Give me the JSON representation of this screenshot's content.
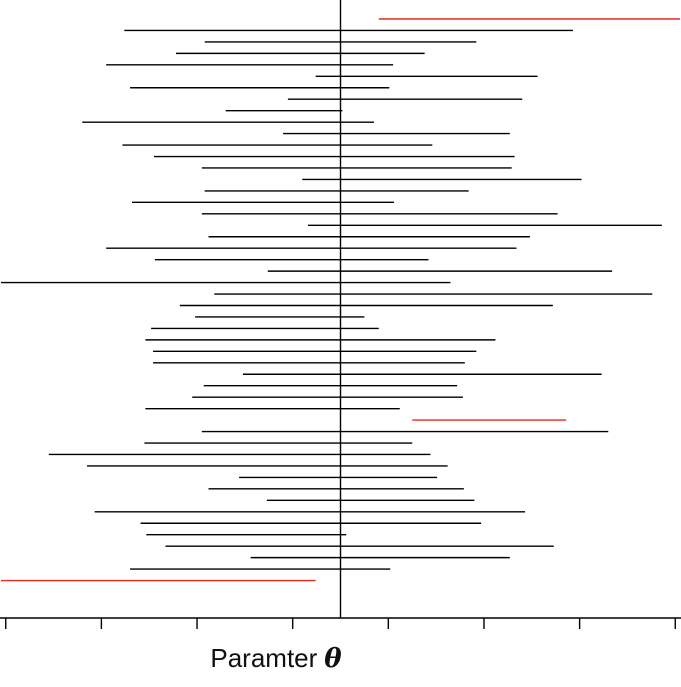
{
  "chart_data": {
    "type": "interval",
    "title": "",
    "xlabel": "Paramter",
    "xlabel_symbol": "θ",
    "ylabel": "",
    "tick_labels": [],
    "reference_line": 0,
    "xlim": [
      -3.56,
      3.56
    ],
    "tick_positions": [
      -3.5,
      -2.5,
      -1.5,
      -0.5,
      0.5,
      1.5,
      2.5,
      3.5
    ],
    "grid": false,
    "legend": "none",
    "intervals": [
      {
        "lower": 0.4,
        "upper": 3.55,
        "highlight": true
      },
      {
        "lower": -2.26,
        "upper": 2.43,
        "highlight": false
      },
      {
        "lower": -1.42,
        "upper": 1.42,
        "highlight": false
      },
      {
        "lower": -1.72,
        "upper": 0.88,
        "highlight": false
      },
      {
        "lower": -2.45,
        "upper": 0.55,
        "highlight": false
      },
      {
        "lower": -0.26,
        "upper": 2.06,
        "highlight": false
      },
      {
        "lower": -2.2,
        "upper": 0.51,
        "highlight": false
      },
      {
        "lower": -0.55,
        "upper": 1.9,
        "highlight": false
      },
      {
        "lower": -1.2,
        "upper": 0.02,
        "highlight": false
      },
      {
        "lower": -2.7,
        "upper": 0.35,
        "highlight": false
      },
      {
        "lower": -0.6,
        "upper": 1.77,
        "highlight": false
      },
      {
        "lower": -2.28,
        "upper": 0.96,
        "highlight": false
      },
      {
        "lower": -1.95,
        "upper": 1.82,
        "highlight": false
      },
      {
        "lower": -1.45,
        "upper": 1.79,
        "highlight": false
      },
      {
        "lower": -0.4,
        "upper": 2.52,
        "highlight": false
      },
      {
        "lower": -1.42,
        "upper": 1.34,
        "highlight": false
      },
      {
        "lower": -2.18,
        "upper": 0.56,
        "highlight": false
      },
      {
        "lower": -1.45,
        "upper": 2.27,
        "highlight": false
      },
      {
        "lower": -0.34,
        "upper": 3.36,
        "highlight": false
      },
      {
        "lower": -1.38,
        "upper": 1.98,
        "highlight": false
      },
      {
        "lower": -2.45,
        "upper": 1.84,
        "highlight": false
      },
      {
        "lower": -1.94,
        "upper": 0.92,
        "highlight": false
      },
      {
        "lower": -0.76,
        "upper": 2.84,
        "highlight": false
      },
      {
        "lower": -3.62,
        "upper": 1.15,
        "highlight": false
      },
      {
        "lower": -1.32,
        "upper": 3.26,
        "highlight": false
      },
      {
        "lower": -1.68,
        "upper": 2.22,
        "highlight": false
      },
      {
        "lower": -1.52,
        "upper": 0.25,
        "highlight": false
      },
      {
        "lower": -1.98,
        "upper": 0.4,
        "highlight": false
      },
      {
        "lower": -2.04,
        "upper": 1.62,
        "highlight": false
      },
      {
        "lower": -1.96,
        "upper": 1.42,
        "highlight": false
      },
      {
        "lower": -1.96,
        "upper": 1.3,
        "highlight": false
      },
      {
        "lower": -1.02,
        "upper": 2.73,
        "highlight": false
      },
      {
        "lower": -1.43,
        "upper": 1.22,
        "highlight": false
      },
      {
        "lower": -1.55,
        "upper": 1.28,
        "highlight": false
      },
      {
        "lower": -2.04,
        "upper": 0.62,
        "highlight": false
      },
      {
        "lower": 0.75,
        "upper": 2.36,
        "highlight": true
      },
      {
        "lower": -1.45,
        "upper": 2.8,
        "highlight": false
      },
      {
        "lower": -2.05,
        "upper": 0.75,
        "highlight": false
      },
      {
        "lower": -3.05,
        "upper": 0.94,
        "highlight": false
      },
      {
        "lower": -2.65,
        "upper": 1.12,
        "highlight": false
      },
      {
        "lower": -1.06,
        "upper": 1.01,
        "highlight": false
      },
      {
        "lower": -1.38,
        "upper": 1.29,
        "highlight": false
      },
      {
        "lower": -0.77,
        "upper": 1.4,
        "highlight": false
      },
      {
        "lower": -2.57,
        "upper": 1.93,
        "highlight": false
      },
      {
        "lower": -2.09,
        "upper": 1.47,
        "highlight": false
      },
      {
        "lower": -2.03,
        "upper": 0.06,
        "highlight": false
      },
      {
        "lower": -1.83,
        "upper": 2.23,
        "highlight": false
      },
      {
        "lower": -0.94,
        "upper": 1.77,
        "highlight": false
      },
      {
        "lower": -2.2,
        "upper": 0.52,
        "highlight": false
      },
      {
        "lower": -3.59,
        "upper": -0.26,
        "highlight": true
      }
    ],
    "colors": {
      "covering": "#000000",
      "missing": "#e8281e",
      "axis": "#000000"
    }
  }
}
